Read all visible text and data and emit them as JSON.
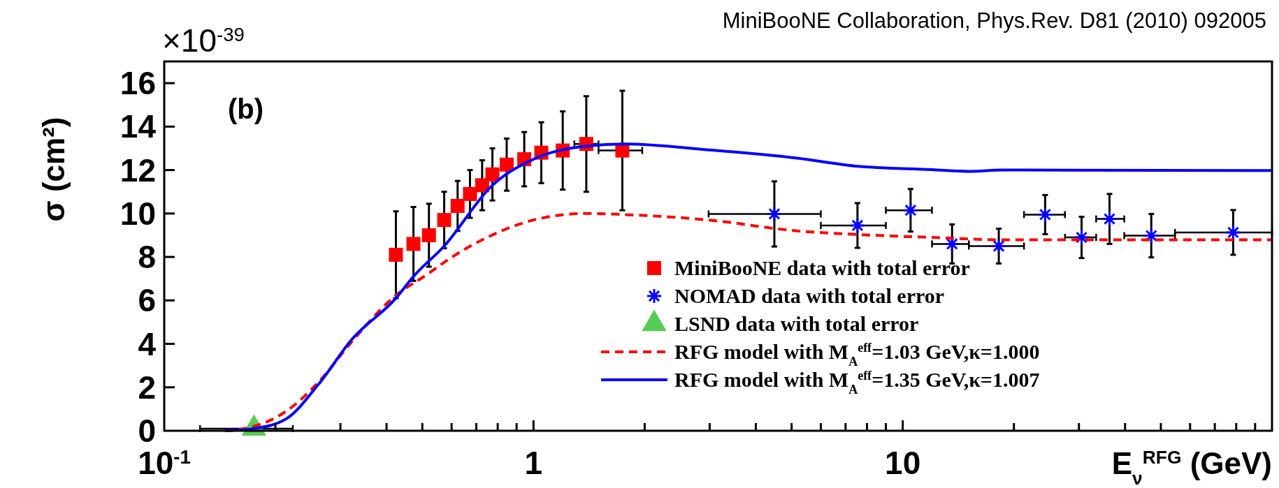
{
  "chart_data": {
    "type": "scatter",
    "ylabel": "σ (cm²)",
    "xlabel": "E$_{ν}$$^{RFG}$ (GeV)",
    "annotations": [
      "MiniBooNE Collaboration, Phys.Rev. D81 (2010) 092005",
      "(b)",
      "×10$^{-39}$"
    ],
    "log": "x",
    "xlim": [
      0.1,
      100
    ],
    "ylim": [
      0,
      17
    ],
    "xticks": [
      {
        "value": 0.1,
        "label": "10$^{-1}$"
      },
      {
        "value": 0.2,
        "label": null
      },
      {
        "value": 0.3,
        "label": null
      },
      {
        "value": 0.4,
        "label": null
      },
      {
        "value": 0.5,
        "label": null
      },
      {
        "value": 0.6,
        "label": null
      },
      {
        "value": 0.7,
        "label": null
      },
      {
        "value": 0.8,
        "label": null
      },
      {
        "value": 0.9,
        "label": null
      },
      1,
      {
        "value": 2,
        "label": null
      },
      {
        "value": 3,
        "label": null
      },
      {
        "value": 4,
        "label": null
      },
      {
        "value": 5,
        "label": null
      },
      {
        "value": 6,
        "label": null
      },
      {
        "value": 7,
        "label": null
      },
      {
        "value": 8,
        "label": null
      },
      {
        "value": 9,
        "label": null
      },
      10,
      {
        "value": 20,
        "label": null
      },
      {
        "value": 30,
        "label": null
      },
      {
        "value": 40,
        "label": null
      },
      {
        "value": 50,
        "label": null
      },
      {
        "value": 60,
        "label": null
      },
      {
        "value": 70,
        "label": null
      },
      {
        "value": 80,
        "label": null
      },
      {
        "value": 90,
        "label": null
      }
    ],
    "yticks": [
      0,
      2,
      4,
      6,
      8,
      10,
      12,
      14,
      16
    ],
    "grid": false,
    "legend": "bottom right",
    "series": [
      {
        "name": "MiniBooNE data with total error",
        "marker": "square",
        "color": "#ff0000",
        "x": [
          0.424,
          0.473,
          0.521,
          0.573,
          0.623,
          0.673,
          0.726,
          0.774,
          0.846,
          0.944,
          1.05,
          1.2,
          1.39,
          1.74
        ],
        "values": [
          8.1,
          8.6,
          9.0,
          9.7,
          10.35,
          10.9,
          11.3,
          11.8,
          12.25,
          12.5,
          12.8,
          12.9,
          13.2,
          12.9
        ],
        "errors": [
          2.0,
          1.7,
          1.45,
          1.3,
          1.15,
          1.1,
          1.15,
          1.2,
          1.2,
          1.25,
          1.4,
          1.8,
          2.2,
          2.75
        ],
        "xerrors": [
          null,
          null,
          null,
          null,
          null,
          null,
          null,
          null,
          null,
          null,
          null,
          null,
          [
            1.29,
            1.5
          ],
          [
            1.5,
            1.97
          ]
        ]
      },
      {
        "name": "NOMAD data with total error",
        "marker": "cross",
        "color": "#0000ff",
        "x": [
          4.49,
          7.54,
          10.5,
          13.6,
          18.2,
          24.3,
          30.5,
          36.3,
          47.1,
          78.5
        ],
        "values": [
          9.98,
          9.45,
          10.15,
          8.6,
          8.5,
          9.95,
          8.9,
          9.75,
          8.98,
          9.13
        ],
        "errors": [
          1.5,
          1.03,
          0.98,
          0.9,
          0.8,
          0.9,
          0.95,
          1.15,
          1.0,
          1.03
        ],
        "xerrors": [
          [
            2.98,
            6.0
          ],
          [
            6.0,
            9.0
          ],
          [
            9.0,
            12.0
          ],
          [
            12.0,
            15.1
          ],
          [
            15.1,
            21.3
          ],
          [
            21.3,
            27.5
          ],
          [
            27.5,
            33.4
          ],
          [
            33.4,
            39.8
          ],
          [
            39.8,
            54.6
          ],
          [
            54.6,
            100
          ]
        ]
      },
      {
        "name": "LSND data with total error",
        "marker": "triangle",
        "color": "#55cc55",
        "x": [
          0.175
        ],
        "values": [
          0.1
        ],
        "xerrors": [
          [
            0.125,
            0.223
          ]
        ]
      },
      {
        "name": "RFG model with M$_{A}$$^{eff}$=1.03 GeV,κ=1.000",
        "type": "line",
        "line_style": "dashed",
        "color": "#ff0000",
        "x": [
          0.146,
          0.175,
          0.214,
          0.262,
          0.322,
          0.415,
          0.521,
          0.59,
          0.76,
          1.0,
          1.39,
          1.77,
          2.98,
          5.17,
          7.6,
          12.0,
          18.6,
          39.8,
          100
        ],
        "values": [
          0,
          0.2,
          0.9,
          2.25,
          4.1,
          6.1,
          7.25,
          7.9,
          8.95,
          9.7,
          10.0,
          9.95,
          9.7,
          9.2,
          9.03,
          8.9,
          8.79,
          8.79,
          8.79
        ]
      },
      {
        "name": "RFG model with M$_{A}$$^{eff}$=1.35 GeV,κ=1.007",
        "type": "line",
        "line_style": "solid",
        "color": "#0000ff",
        "x": [
          0.146,
          0.175,
          0.214,
          0.262,
          0.322,
          0.424,
          0.473,
          0.573,
          0.774,
          1.0,
          1.39,
          1.77,
          2.98,
          5.17,
          7.6,
          12.0,
          15.2,
          18.6,
          100
        ],
        "values": [
          0,
          0.1,
          0.55,
          2.15,
          4.2,
          6.1,
          7.1,
          8.5,
          11.3,
          12.5,
          13.1,
          13.2,
          12.93,
          12.55,
          12.17,
          12.02,
          11.94,
          12.0,
          11.98
        ]
      }
    ]
  }
}
